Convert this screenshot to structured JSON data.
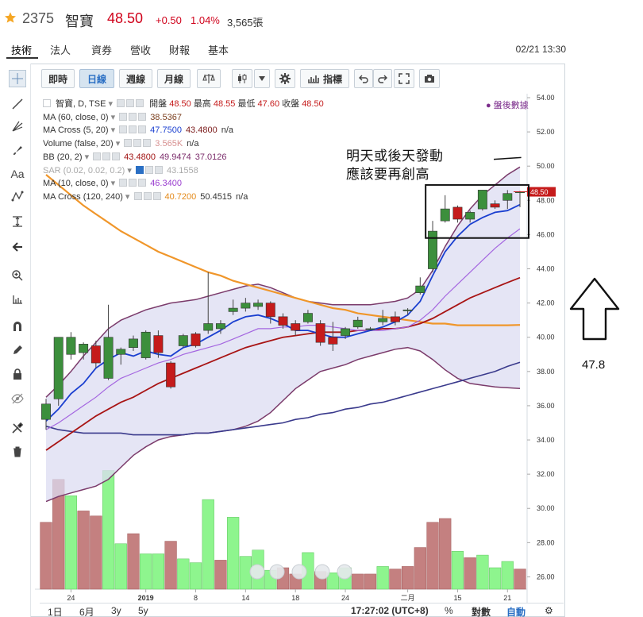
{
  "header": {
    "code": "2375",
    "name": "智寶",
    "price": "48.50",
    "change": "+0.50",
    "percent": "1.04%",
    "volume": "3,565張"
  },
  "nav": {
    "tabs": [
      "技術",
      "法人",
      "資券",
      "營收",
      "財報",
      "基本"
    ],
    "datetime": "02/21 13:30"
  },
  "toolbar": {
    "periods": [
      "即時",
      "日線",
      "週線",
      "月線"
    ],
    "active_period": "日線",
    "indicator_label": "指標"
  },
  "legend": {
    "main": {
      "name": "智寶, D, TSE",
      "open_label": "開盤",
      "open": "48.50",
      "high_label": "最高",
      "high": "48.55",
      "low_label": "最低",
      "low": "47.60",
      "close_label": "收盤",
      "close": "48.50"
    },
    "rows": [
      {
        "name": "MA (60, close, 0)",
        "values": [
          "38.5367"
        ],
        "colors": [
          "#7b3f1e"
        ]
      },
      {
        "name": "MA Cross (5, 20)",
        "values": [
          "47.7500",
          "43.4800",
          "n/a"
        ],
        "colors": [
          "#1a3fd0",
          "#7b1a1a",
          "#333333"
        ]
      },
      {
        "name": "Volume (false, 20)",
        "values": [
          "3.565K",
          "n/a"
        ],
        "colors": [
          "#d79090",
          "#333333"
        ]
      },
      {
        "name": "BB (20, 2)",
        "values": [
          "43.4800",
          "49.9474",
          "37.0126"
        ],
        "colors": [
          "#a01010",
          "#7b2c6b",
          "#7b2c6b"
        ]
      },
      {
        "name": "SAR (0.02, 0.02, 0.2)",
        "values": [
          "43.1558"
        ],
        "colors": [
          "#aaaaaa"
        ]
      },
      {
        "name": "MA (10, close, 0)",
        "values": [
          "46.3400"
        ],
        "colors": [
          "#9b3fd0"
        ]
      },
      {
        "name": "MA Cross (120, 240)",
        "values": [
          "40.7200",
          "50.4515",
          "n/a"
        ],
        "colors": [
          "#e48a1a",
          "#333333",
          "#333333"
        ]
      }
    ],
    "after_hours": "盤後數據"
  },
  "annotation": {
    "line1": "明天或後天發動",
    "line2": "應該要再創高",
    "side_value": "47.8"
  },
  "price_label": "48.50",
  "bottom": {
    "ranges": [
      "1日",
      "6月",
      "3y",
      "5y"
    ],
    "clock": "17:27:02 (UTC+8)",
    "percent": "%",
    "log": "對數",
    "auto": "自動"
  },
  "colors": {
    "up": "#3c8f3c",
    "down": "#c51b1b",
    "up_volume": "#8ef58e",
    "down_volume": "#c48080",
    "bb_fill": "#dcdcf2",
    "accent": "#2a6fc4"
  },
  "chart_data": {
    "type": "candlestick",
    "y_axis": {
      "min": 25,
      "max": 54,
      "ticks": [
        "26.00",
        "28.00",
        "30.00",
        "32.00",
        "34.00",
        "36.00",
        "38.00",
        "40.00",
        "42.00",
        "44.00",
        "46.00",
        "48.00",
        "50.00",
        "52.00",
        "54.00"
      ]
    },
    "x_ticks": [
      "24",
      "2019",
      "8",
      "14",
      "18",
      "24",
      "二月",
      "15",
      "21"
    ],
    "candles": [
      {
        "o": 35.2,
        "h": 36.4,
        "l": 34.6,
        "c": 36.1
      },
      {
        "o": 36.4,
        "h": 40.0,
        "l": 36.0,
        "c": 40.0
      },
      {
        "o": 39.0,
        "h": 40.3,
        "l": 38.7,
        "c": 40.0
      },
      {
        "o": 39.1,
        "h": 39.7,
        "l": 38.7,
        "c": 39.6
      },
      {
        "o": 39.5,
        "h": 39.8,
        "l": 38.2,
        "c": 38.5
      },
      {
        "o": 37.6,
        "h": 41.9,
        "l": 37.5,
        "c": 40.0
      },
      {
        "o": 39.0,
        "h": 39.4,
        "l": 38.4,
        "c": 39.3
      },
      {
        "o": 39.4,
        "h": 40.1,
        "l": 39.2,
        "c": 39.9
      },
      {
        "o": 38.8,
        "h": 40.4,
        "l": 38.7,
        "c": 40.3
      },
      {
        "o": 40.1,
        "h": 40.4,
        "l": 38.8,
        "c": 39.1
      },
      {
        "o": 38.5,
        "h": 38.6,
        "l": 37.0,
        "c": 37.1
      },
      {
        "o": 39.5,
        "h": 40.2,
        "l": 39.4,
        "c": 40.1
      },
      {
        "o": 40.2,
        "h": 40.3,
        "l": 39.4,
        "c": 39.5
      },
      {
        "o": 40.4,
        "h": 43.8,
        "l": 40.2,
        "c": 40.8
      },
      {
        "o": 40.5,
        "h": 41.0,
        "l": 40.2,
        "c": 40.8
      },
      {
        "o": 41.5,
        "h": 42.2,
        "l": 41.3,
        "c": 41.7
      },
      {
        "o": 41.7,
        "h": 42.3,
        "l": 41.5,
        "c": 42.0
      },
      {
        "o": 41.8,
        "h": 42.2,
        "l": 41.6,
        "c": 42.0
      },
      {
        "o": 42.0,
        "h": 42.1,
        "l": 40.8,
        "c": 41.2
      },
      {
        "o": 41.2,
        "h": 41.4,
        "l": 40.5,
        "c": 40.7
      },
      {
        "o": 40.8,
        "h": 41.0,
        "l": 40.1,
        "c": 40.4
      },
      {
        "o": 40.9,
        "h": 41.6,
        "l": 40.8,
        "c": 41.4
      },
      {
        "o": 40.8,
        "h": 41.0,
        "l": 39.5,
        "c": 39.7
      },
      {
        "o": 40.0,
        "h": 40.9,
        "l": 39.2,
        "c": 39.6
      },
      {
        "o": 40.1,
        "h": 40.6,
        "l": 39.9,
        "c": 40.5
      },
      {
        "o": 40.6,
        "h": 41.2,
        "l": 40.5,
        "c": 41.0
      },
      {
        "o": 40.5,
        "h": 40.6,
        "l": 40.4,
        "c": 40.5
      },
      {
        "o": 40.9,
        "h": 41.6,
        "l": 40.7,
        "c": 41.1
      },
      {
        "o": 41.2,
        "h": 41.5,
        "l": 40.7,
        "c": 40.9
      },
      {
        "o": 41.6,
        "h": 41.7,
        "l": 41.3,
        "c": 41.6
      },
      {
        "o": 42.6,
        "h": 43.5,
        "l": 42.5,
        "c": 43.0
      },
      {
        "o": 44.0,
        "h": 46.8,
        "l": 43.8,
        "c": 46.2
      },
      {
        "o": 46.8,
        "h": 48.3,
        "l": 46.7,
        "c": 47.5
      },
      {
        "o": 47.6,
        "h": 47.7,
        "l": 46.7,
        "c": 46.9
      },
      {
        "o": 46.9,
        "h": 47.4,
        "l": 46.7,
        "c": 47.3
      },
      {
        "o": 47.5,
        "h": 48.6,
        "l": 47.4,
        "c": 48.6
      },
      {
        "o": 47.8,
        "h": 48.0,
        "l": 47.5,
        "c": 47.6
      },
      {
        "o": 48.0,
        "h": 48.6,
        "l": 47.5,
        "c": 48.4
      },
      {
        "o": 48.5,
        "h": 48.55,
        "l": 47.6,
        "c": 48.5
      }
    ],
    "volume": [
      {
        "v": 0.53,
        "up": false
      },
      {
        "v": 0.87,
        "up": false
      },
      {
        "v": 0.74,
        "up": true
      },
      {
        "v": 0.62,
        "up": false
      },
      {
        "v": 0.58,
        "up": false
      },
      {
        "v": 0.94,
        "up": true
      },
      {
        "v": 0.36,
        "up": true
      },
      {
        "v": 0.44,
        "up": false
      },
      {
        "v": 0.28,
        "up": true
      },
      {
        "v": 0.28,
        "up": true
      },
      {
        "v": 0.38,
        "up": false
      },
      {
        "v": 0.24,
        "up": true
      },
      {
        "v": 0.21,
        "up": true
      },
      {
        "v": 0.71,
        "up": true
      },
      {
        "v": 0.23,
        "up": false
      },
      {
        "v": 0.57,
        "up": true
      },
      {
        "v": 0.26,
        "up": true
      },
      {
        "v": 0.31,
        "up": true
      },
      {
        "v": 0.15,
        "up": true
      },
      {
        "v": 0.17,
        "up": false
      },
      {
        "v": 0.12,
        "up": false
      },
      {
        "v": 0.29,
        "up": true
      },
      {
        "v": 0.14,
        "up": false
      },
      {
        "v": 0.13,
        "up": true
      },
      {
        "v": 0.17,
        "up": true
      },
      {
        "v": 0.12,
        "up": false
      },
      {
        "v": 0.12,
        "up": false
      },
      {
        "v": 0.18,
        "up": true
      },
      {
        "v": 0.16,
        "up": false
      },
      {
        "v": 0.18,
        "up": false
      },
      {
        "v": 0.33,
        "up": false
      },
      {
        "v": 0.53,
        "up": false
      },
      {
        "v": 0.56,
        "up": false
      },
      {
        "v": 0.3,
        "up": true
      },
      {
        "v": 0.25,
        "up": false
      },
      {
        "v": 0.27,
        "up": true
      },
      {
        "v": 0.17,
        "up": true
      },
      {
        "v": 0.22,
        "up": true
      },
      {
        "v": 0.16,
        "up": false
      }
    ],
    "ma5": [
      35.1,
      35.8,
      36.7,
      37.3,
      38.2,
      38.7,
      39.1,
      38.9,
      39.2,
      39.0,
      38.9,
      39.4,
      39.6,
      40.0,
      40.4,
      40.9,
      41.2,
      41.3,
      41.1,
      40.8,
      40.4,
      40.4,
      40.2,
      40.0,
      40.0,
      40.2,
      40.4,
      40.6,
      40.9,
      41.3,
      42.1,
      43.6,
      45.0,
      45.9,
      46.6,
      47.0,
      47.3,
      47.4,
      47.75
    ],
    "ma10": [
      34.6,
      35.0,
      35.5,
      36.0,
      36.5,
      37.1,
      37.6,
      37.9,
      38.2,
      38.5,
      38.7,
      39.0,
      39.2,
      39.4,
      39.6,
      39.9,
      40.2,
      40.5,
      40.5,
      40.6,
      40.6,
      40.7,
      40.7,
      40.6,
      40.5,
      40.4,
      40.4,
      40.4,
      40.5,
      40.6,
      41.0,
      41.6,
      42.4,
      43.1,
      43.8,
      44.5,
      45.2,
      45.8,
      46.34
    ],
    "ma20": [
      33.4,
      33.9,
      34.4,
      34.9,
      35.4,
      35.8,
      36.2,
      36.5,
      36.9,
      37.3,
      37.6,
      37.9,
      38.2,
      38.5,
      38.8,
      39.1,
      39.4,
      39.6,
      39.8,
      40.0,
      40.1,
      40.2,
      40.3,
      40.3,
      40.3,
      40.4,
      40.4,
      40.5,
      40.5,
      40.6,
      40.8,
      41.1,
      41.5,
      41.9,
      42.3,
      42.6,
      42.9,
      43.2,
      43.48
    ],
    "bb_upper": [
      36.5,
      37.2,
      38.0,
      38.9,
      39.7,
      40.5,
      41.0,
      41.3,
      41.6,
      41.8,
      42.0,
      42.1,
      42.2,
      42.4,
      42.6,
      42.8,
      43.0,
      43.1,
      42.9,
      42.6,
      42.3,
      42.1,
      42.0,
      41.9,
      41.9,
      41.9,
      41.9,
      42.0,
      42.1,
      42.3,
      42.8,
      43.9,
      45.3,
      46.5,
      47.5,
      48.3,
      48.9,
      49.5,
      49.95
    ],
    "bb_lower": [
      30.4,
      30.7,
      30.9,
      31.1,
      31.3,
      31.7,
      32.4,
      33.1,
      33.6,
      34.0,
      34.2,
      34.3,
      34.4,
      34.4,
      34.5,
      34.6,
      34.8,
      35.1,
      35.6,
      36.3,
      37.0,
      37.5,
      38.0,
      38.2,
      38.4,
      38.7,
      38.9,
      39.1,
      39.3,
      39.4,
      39.2,
      38.7,
      38.1,
      37.6,
      37.3,
      37.2,
      37.1,
      37.05,
      37.01
    ],
    "ma60": [
      34.8,
      34.6,
      34.5,
      34.4,
      34.4,
      34.4,
      34.4,
      34.3,
      34.3,
      34.3,
      34.3,
      34.3,
      34.4,
      34.4,
      34.5,
      34.6,
      34.7,
      34.8,
      34.9,
      35.0,
      35.2,
      35.3,
      35.5,
      35.6,
      35.8,
      35.9,
      36.1,
      36.2,
      36.4,
      36.6,
      36.8,
      37.0,
      37.2,
      37.4,
      37.6,
      37.8,
      38.0,
      38.3,
      38.54
    ],
    "ma120": [
      49.5,
      48.9,
      48.3,
      47.7,
      47.2,
      46.7,
      46.2,
      45.8,
      45.4,
      45.0,
      44.7,
      44.4,
      44.1,
      43.8,
      43.6,
      43.3,
      43.1,
      42.9,
      42.7,
      42.5,
      42.3,
      42.1,
      41.9,
      41.7,
      41.6,
      41.4,
      41.3,
      41.2,
      41.1,
      41.0,
      40.9,
      40.8,
      40.8,
      40.7,
      40.7,
      40.7,
      40.7,
      40.7,
      40.72
    ]
  }
}
